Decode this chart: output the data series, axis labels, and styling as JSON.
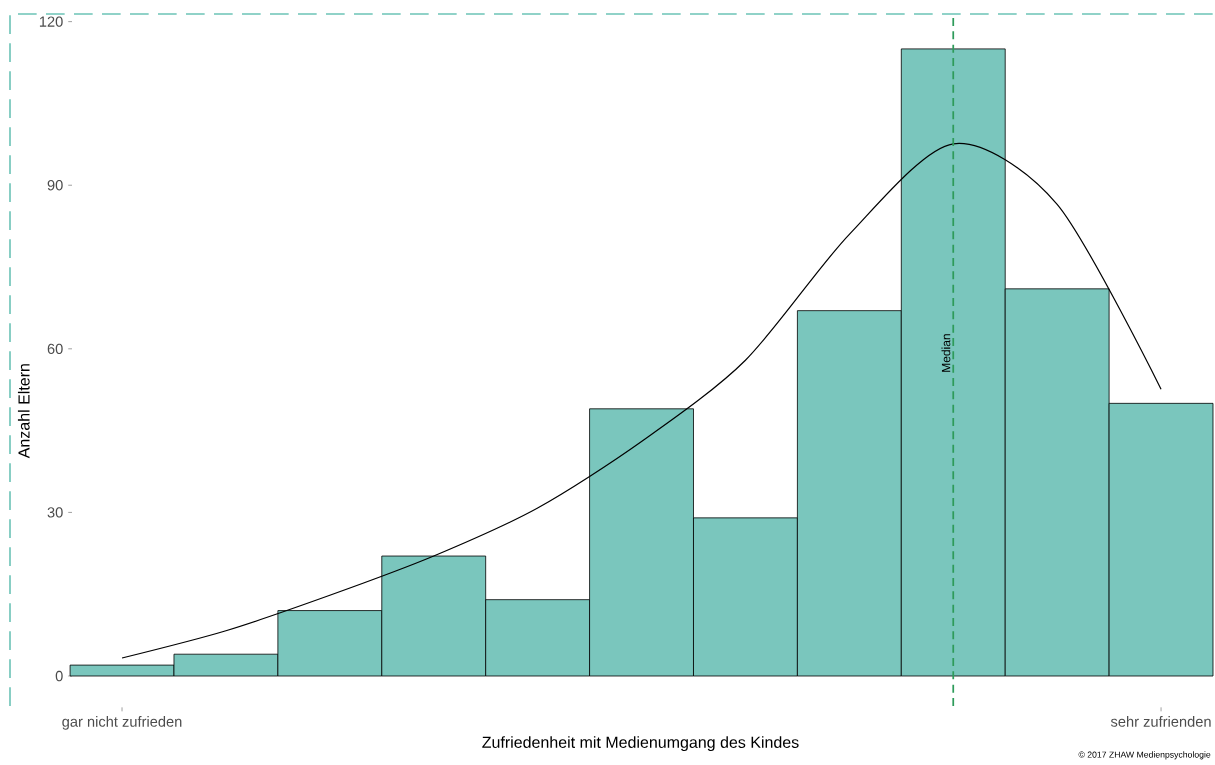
{
  "chart_data": {
    "type": "bar",
    "xlabel": "Zufriedenheit mit Medienumgang des Kindes",
    "ylabel": "Anzahl Eltern",
    "categories": [
      "gar nicht zufrieden",
      null,
      null,
      null,
      null,
      null,
      null,
      null,
      null,
      null,
      "sehr zufrienden"
    ],
    "values": [
      2,
      4,
      12,
      22,
      14,
      49,
      29,
      67,
      115,
      71,
      50
    ],
    "color": "#7ac6bd",
    "series": [
      {
        "type": "line",
        "color": "#000000",
        "values": [
          3.3,
          8.3,
          14.8,
          22,
          30.8,
          43,
          57.9,
          81,
          97.6,
          86.5,
          52.6
        ]
      }
    ],
    "ylim": [
      -5.5,
      121.4
    ],
    "yticks": [
      0,
      30,
      60,
      90,
      120
    ],
    "annotations": [
      "Median",
      "© 2017 ZHAW Medienpsychologie"
    ]
  }
}
